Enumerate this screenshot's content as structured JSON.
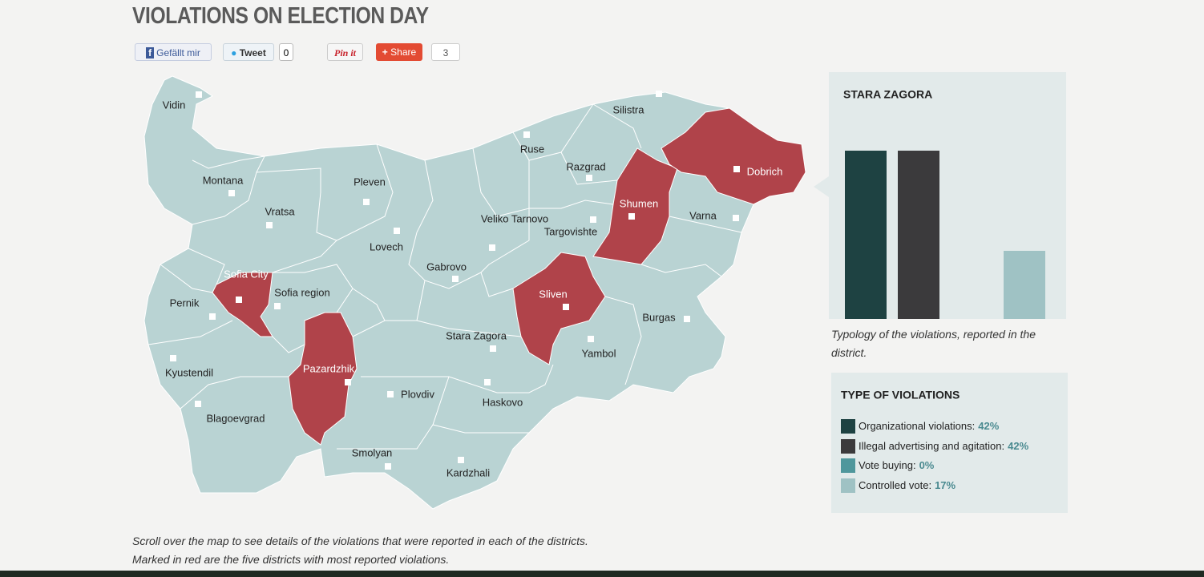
{
  "header": {
    "title": "VIOLATIONS ON ELECTION DAY"
  },
  "social": {
    "like": "Gefällt mir",
    "tweet": "Tweet",
    "tweet_count": 0,
    "pin": "Pin it",
    "share": "Share",
    "share_count": 3
  },
  "map": {
    "base_color": "#b9d3d3",
    "highlight_color": "#b0434a",
    "districts": [
      {
        "name": "Vidin",
        "highlighted": false
      },
      {
        "name": "Montana",
        "highlighted": false
      },
      {
        "name": "Vratsa",
        "highlighted": false
      },
      {
        "name": "Pleven",
        "highlighted": false
      },
      {
        "name": "Lovech",
        "highlighted": false
      },
      {
        "name": "Gabrovo",
        "highlighted": false
      },
      {
        "name": "Veliko Tarnovo",
        "highlighted": false
      },
      {
        "name": "Ruse",
        "highlighted": false
      },
      {
        "name": "Razgrad",
        "highlighted": false
      },
      {
        "name": "Targovishte",
        "highlighted": false
      },
      {
        "name": "Shumen",
        "highlighted": true
      },
      {
        "name": "Silistra",
        "highlighted": false
      },
      {
        "name": "Dobrich",
        "highlighted": true
      },
      {
        "name": "Varna",
        "highlighted": false
      },
      {
        "name": "Burgas",
        "highlighted": false
      },
      {
        "name": "Yambol",
        "highlighted": false
      },
      {
        "name": "Sliven",
        "highlighted": true
      },
      {
        "name": "Stara Zagora",
        "highlighted": false
      },
      {
        "name": "Haskovo",
        "highlighted": false
      },
      {
        "name": "Kardzhali",
        "highlighted": false
      },
      {
        "name": "Smolyan",
        "highlighted": false
      },
      {
        "name": "Plovdiv",
        "highlighted": false
      },
      {
        "name": "Pazardzhik",
        "highlighted": true
      },
      {
        "name": "Blagoevgrad",
        "highlighted": false
      },
      {
        "name": "Kyustendil",
        "highlighted": false
      },
      {
        "name": "Pernik",
        "highlighted": false
      },
      {
        "name": "Sofia region",
        "highlighted": false
      },
      {
        "name": "Sofia City",
        "highlighted": true
      }
    ]
  },
  "chart_data": {
    "type": "bar",
    "title": "STARA ZAGORA",
    "caption": "Typology of the violations, reported in the district.",
    "legend_title": "TYPE OF VIOLATIONS",
    "categories": [
      "Organizational violations:",
      "Illegal advertising and agitation:",
      "Vote buying:",
      "Controlled vote:"
    ],
    "values": [
      42,
      42,
      0,
      17
    ],
    "value_labels": [
      "42%",
      "42%",
      "0%",
      "17%"
    ],
    "colors": [
      "#1e4242",
      "#3b3a3c",
      "#4f979c",
      "#9fc2c4"
    ]
  },
  "notes": [
    "Scroll over the map to see details of the violations that were reported in each of the districts.",
    "Marked in red are the five districts with most reported violations."
  ]
}
